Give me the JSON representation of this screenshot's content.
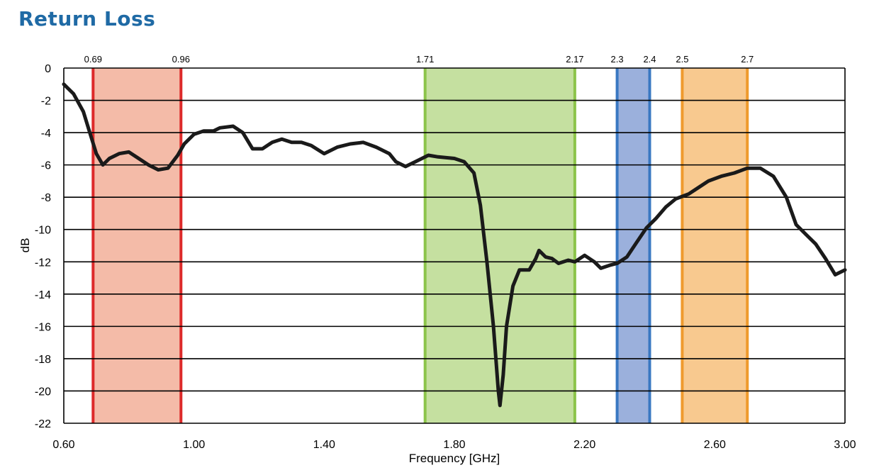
{
  "chart_data": {
    "type": "line",
    "title": "Return Loss",
    "xlabel": "Frequency [GHz]",
    "ylabel": "dB",
    "xlim": [
      0.6,
      3.0
    ],
    "ylim": [
      -22,
      0
    ],
    "x_ticks": [
      0.6,
      1.0,
      1.4,
      1.8,
      2.2,
      2.6,
      3.0
    ],
    "x_tick_labels": [
      "0.60",
      "1.00",
      "1.40",
      "1.80",
      "2.20",
      "2.60",
      "3.00"
    ],
    "y_ticks": [
      0,
      -2,
      -4,
      -6,
      -8,
      -10,
      -12,
      -14,
      -16,
      -18,
      -20,
      -22
    ],
    "y_tick_labels": [
      "0",
      "-2",
      "-4",
      "-6",
      "-8",
      "-10",
      "-12",
      "-14",
      "-16",
      "-18",
      "-20",
      "-22"
    ],
    "grid": "horizontal",
    "bands": [
      {
        "from": 0.69,
        "to": 0.96,
        "from_label": "0.69",
        "to_label": "0.96",
        "fill": "#f4bba8",
        "edge": "#dd2a2a"
      },
      {
        "from": 1.71,
        "to": 2.17,
        "from_label": "1.71",
        "to_label": "2.17",
        "fill": "#c5e0a0",
        "edge": "#8cc44a"
      },
      {
        "from": 2.3,
        "to": 2.4,
        "from_label": "2.3",
        "to_label": "2.4",
        "fill": "#9bb0dc",
        "edge": "#3a78c2"
      },
      {
        "from": 2.5,
        "to": 2.7,
        "from_label": "2.5",
        "to_label": "2.7",
        "fill": "#f8c98f",
        "edge": "#ef9a2d"
      }
    ],
    "series": [
      {
        "color": "#1a1a1a",
        "points": [
          [
            0.6,
            -1.0
          ],
          [
            0.63,
            -1.6
          ],
          [
            0.66,
            -2.7
          ],
          [
            0.68,
            -4.0
          ],
          [
            0.7,
            -5.3
          ],
          [
            0.72,
            -6.0
          ],
          [
            0.74,
            -5.6
          ],
          [
            0.77,
            -5.3
          ],
          [
            0.8,
            -5.2
          ],
          [
            0.83,
            -5.6
          ],
          [
            0.86,
            -6.0
          ],
          [
            0.89,
            -6.3
          ],
          [
            0.92,
            -6.2
          ],
          [
            0.95,
            -5.4
          ],
          [
            0.97,
            -4.7
          ],
          [
            1.0,
            -4.1
          ],
          [
            1.03,
            -3.9
          ],
          [
            1.06,
            -3.9
          ],
          [
            1.08,
            -3.7
          ],
          [
            1.12,
            -3.6
          ],
          [
            1.15,
            -4.0
          ],
          [
            1.18,
            -5.0
          ],
          [
            1.21,
            -5.0
          ],
          [
            1.24,
            -4.6
          ],
          [
            1.27,
            -4.4
          ],
          [
            1.3,
            -4.6
          ],
          [
            1.33,
            -4.6
          ],
          [
            1.36,
            -4.8
          ],
          [
            1.4,
            -5.3
          ],
          [
            1.44,
            -4.9
          ],
          [
            1.48,
            -4.7
          ],
          [
            1.52,
            -4.6
          ],
          [
            1.56,
            -4.9
          ],
          [
            1.6,
            -5.3
          ],
          [
            1.62,
            -5.8
          ],
          [
            1.65,
            -6.1
          ],
          [
            1.68,
            -5.8
          ],
          [
            1.72,
            -5.4
          ],
          [
            1.75,
            -5.5
          ],
          [
            1.8,
            -5.6
          ],
          [
            1.83,
            -5.8
          ],
          [
            1.86,
            -6.5
          ],
          [
            1.88,
            -8.5
          ],
          [
            1.9,
            -12.0
          ],
          [
            1.92,
            -16.0
          ],
          [
            1.935,
            -20.0
          ],
          [
            1.94,
            -20.9
          ],
          [
            1.95,
            -19.0
          ],
          [
            1.96,
            -16.0
          ],
          [
            1.98,
            -13.5
          ],
          [
            2.0,
            -12.5
          ],
          [
            2.03,
            -12.5
          ],
          [
            2.05,
            -11.8
          ],
          [
            2.06,
            -11.3
          ],
          [
            2.08,
            -11.7
          ],
          [
            2.1,
            -11.8
          ],
          [
            2.12,
            -12.1
          ],
          [
            2.15,
            -11.9
          ],
          [
            2.17,
            -12.0
          ],
          [
            2.2,
            -11.6
          ],
          [
            2.23,
            -12.0
          ],
          [
            2.25,
            -12.4
          ],
          [
            2.28,
            -12.2
          ],
          [
            2.3,
            -12.1
          ],
          [
            2.33,
            -11.7
          ],
          [
            2.36,
            -10.8
          ],
          [
            2.39,
            -9.9
          ],
          [
            2.42,
            -9.3
          ],
          [
            2.45,
            -8.6
          ],
          [
            2.48,
            -8.1
          ],
          [
            2.52,
            -7.8
          ],
          [
            2.55,
            -7.4
          ],
          [
            2.58,
            -7.0
          ],
          [
            2.62,
            -6.7
          ],
          [
            2.66,
            -6.5
          ],
          [
            2.7,
            -6.2
          ],
          [
            2.74,
            -6.2
          ],
          [
            2.78,
            -6.7
          ],
          [
            2.82,
            -8.0
          ],
          [
            2.85,
            -9.7
          ],
          [
            2.88,
            -10.3
          ],
          [
            2.91,
            -10.9
          ],
          [
            2.94,
            -11.8
          ],
          [
            2.97,
            -12.8
          ],
          [
            3.0,
            -12.5
          ]
        ]
      }
    ]
  }
}
